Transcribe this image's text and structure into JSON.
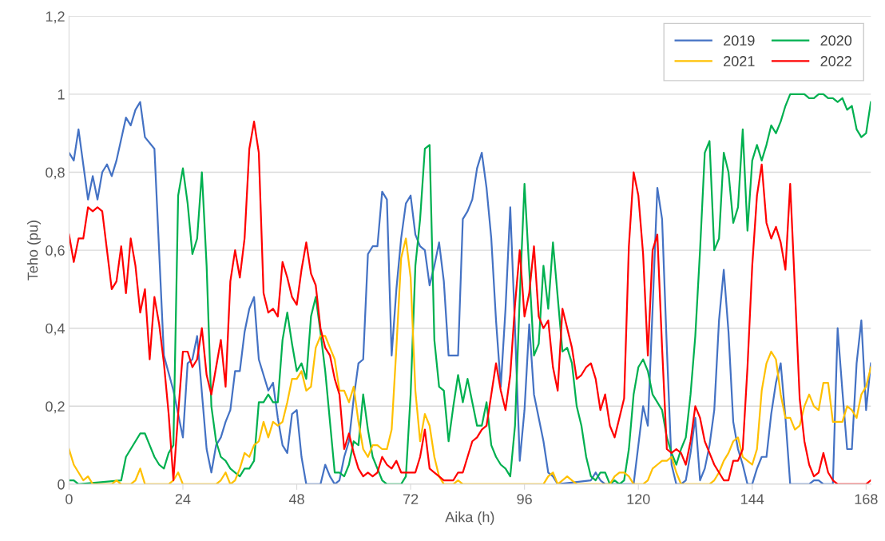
{
  "chart_data": {
    "type": "line",
    "xlabel": "Aika (h)",
    "ylabel": "Teho (pu)",
    "xlim": [
      0,
      169
    ],
    "xticks": [
      0,
      24,
      48,
      72,
      96,
      120,
      144,
      168
    ],
    "ylim": [
      0,
      1.2
    ],
    "yticks": [
      0,
      {
        "value": 0.2,
        "label": "0,2"
      },
      {
        "value": 0.4,
        "label": "0,4"
      },
      {
        "value": 0.6,
        "label": "0,6"
      },
      {
        "value": 0.8,
        "label": "0,8"
      },
      1,
      {
        "value": 1.2,
        "label": "1,2"
      }
    ],
    "grid": "y",
    "legend": "top right",
    "marker": "none",
    "line_style": "solid",
    "series": [
      {
        "name": "2019",
        "color": "#4472c4",
        "x": [
          0,
          1,
          2,
          4,
          5,
          6,
          7,
          8,
          9,
          10,
          12,
          13,
          14,
          15,
          16,
          18,
          20,
          22,
          24,
          25,
          26,
          27,
          29,
          30,
          31,
          32,
          33,
          34,
          35,
          36,
          37,
          38,
          39,
          40,
          41,
          42,
          43,
          44,
          45,
          46,
          47,
          48,
          49,
          50,
          51,
          53,
          54,
          55,
          56,
          57,
          58,
          59,
          60,
          61,
          62,
          63,
          64,
          65,
          66,
          67,
          68,
          69,
          70,
          71,
          72,
          73,
          74,
          75,
          76,
          77,
          78,
          79,
          80,
          81,
          82,
          83,
          84,
          85,
          86,
          87,
          88,
          89,
          90,
          91,
          92,
          93,
          94,
          95,
          96,
          97,
          98,
          99,
          100,
          101,
          102,
          103,
          110,
          111,
          112,
          113,
          119,
          120,
          121,
          122,
          123,
          124,
          125,
          126,
          127,
          128,
          129,
          130,
          131,
          132,
          133,
          134,
          135,
          136,
          137,
          138,
          139,
          140,
          141,
          142,
          143,
          144,
          145,
          146,
          147,
          148,
          149,
          150,
          151,
          152,
          156,
          157,
          158,
          159,
          161,
          162,
          163,
          164,
          165,
          166,
          167,
          168,
          169
        ],
        "values": [
          0.85,
          0.83,
          0.91,
          0.73,
          0.79,
          0.73,
          0.8,
          0.82,
          0.79,
          0.83,
          0.94,
          0.92,
          0.96,
          0.98,
          0.89,
          0.86,
          0.33,
          0.24,
          0.12,
          0.31,
          0.32,
          0.38,
          0.09,
          0.03,
          0.1,
          0.12,
          0.16,
          0.19,
          0.29,
          0.29,
          0.39,
          0.45,
          0.48,
          0.32,
          0.28,
          0.24,
          0.26,
          0.17,
          0.1,
          0.08,
          0.18,
          0.19,
          0.07,
          0.0,
          0,
          0,
          0.05,
          0.02,
          0,
          0.01,
          0.07,
          0.11,
          0.22,
          0.31,
          0.32,
          0.59,
          0.61,
          0.61,
          0.75,
          0.73,
          0.33,
          0.5,
          0.63,
          0.72,
          0.74,
          0.64,
          0.61,
          0.6,
          0.51,
          0.56,
          0.62,
          0.52,
          0.33,
          0.33,
          0.33,
          0.68,
          0.7,
          0.73,
          0.81,
          0.85,
          0.76,
          0.63,
          0.42,
          0.25,
          0.45,
          0.71,
          0.4,
          0.06,
          0.19,
          0.41,
          0.23,
          0.17,
          0.11,
          0.03,
          0.02,
          0,
          0.01,
          0.03,
          0.01,
          0,
          0,
          0.1,
          0.2,
          0.15,
          0.45,
          0.76,
          0.68,
          0.35,
          0.05,
          0,
          0,
          0.01,
          0.08,
          0.17,
          0.01,
          0.04,
          0.1,
          0.19,
          0.42,
          0.55,
          0.39,
          0.16,
          0.09,
          0.05,
          0,
          0,
          0.04,
          0.07,
          0.07,
          0.18,
          0.26,
          0.31,
          0.17,
          0,
          0,
          0.01,
          0.01,
          0,
          0,
          0.4,
          0.24,
          0.09,
          0.09,
          0.31,
          0.42,
          0.19,
          0.31
        ]
      },
      {
        "name": "2020",
        "color": "#00b050",
        "x": [
          0,
          1,
          2,
          11,
          12,
          13,
          14,
          15,
          16,
          17,
          18,
          19,
          20,
          21,
          22,
          23,
          24,
          25,
          26,
          27,
          28,
          29,
          30,
          31,
          32,
          33,
          34,
          35,
          36,
          37,
          38,
          39,
          40,
          41,
          42,
          43,
          44,
          45,
          46,
          47,
          48,
          49,
          50,
          51,
          52,
          53,
          54,
          55,
          56,
          57,
          58,
          59,
          60,
          61,
          62,
          63,
          64,
          65,
          66,
          67,
          70,
          71,
          72,
          73,
          74,
          75,
          76,
          77,
          78,
          79,
          80,
          81,
          82,
          83,
          84,
          85,
          86,
          87,
          88,
          89,
          90,
          91,
          92,
          93,
          94,
          95,
          96,
          97,
          98,
          99,
          100,
          101,
          102,
          103,
          104,
          105,
          106,
          107,
          108,
          109,
          110,
          111,
          112,
          113,
          114,
          115,
          116,
          117,
          118,
          119,
          120,
          121,
          122,
          123,
          124,
          125,
          126,
          127,
          128,
          129,
          130,
          131,
          132,
          133,
          134,
          135,
          136,
          137,
          138,
          139,
          140,
          141,
          142,
          143,
          144,
          145,
          146,
          147,
          148,
          149,
          150,
          151,
          152,
          153,
          154,
          155,
          156,
          157,
          158,
          159,
          160,
          161,
          162,
          163,
          164,
          165,
          166,
          167,
          168,
          169
        ],
        "values": [
          0.01,
          0.01,
          0,
          0.01,
          0.07,
          0.09,
          0.11,
          0.13,
          0.13,
          0.1,
          0.07,
          0.05,
          0.04,
          0.08,
          0.1,
          0.74,
          0.81,
          0.72,
          0.59,
          0.63,
          0.8,
          0.56,
          0.2,
          0.11,
          0.07,
          0.06,
          0.04,
          0.03,
          0.02,
          0.04,
          0.04,
          0.06,
          0.21,
          0.21,
          0.23,
          0.21,
          0.21,
          0.37,
          0.44,
          0.36,
          0.29,
          0.31,
          0.27,
          0.43,
          0.48,
          0.39,
          0.29,
          0.16,
          0.03,
          0.03,
          0.02,
          0.05,
          0.11,
          0.1,
          0.23,
          0.14,
          0.07,
          0.04,
          0.01,
          0,
          0,
          0.02,
          0.23,
          0.56,
          0.68,
          0.86,
          0.87,
          0.37,
          0.25,
          0.24,
          0.11,
          0.2,
          0.28,
          0.21,
          0.27,
          0.21,
          0.15,
          0.15,
          0.21,
          0.1,
          0.07,
          0.05,
          0.04,
          0.02,
          0.15,
          0.48,
          0.77,
          0.55,
          0.33,
          0.36,
          0.56,
          0.45,
          0.62,
          0.48,
          0.34,
          0.35,
          0.31,
          0.2,
          0.15,
          0.07,
          0.02,
          0.01,
          0.03,
          0.03,
          0,
          0.01,
          0,
          0.01,
          0.09,
          0.23,
          0.3,
          0.32,
          0.29,
          0.23,
          0.21,
          0.19,
          0.12,
          0.08,
          0.05,
          0.09,
          0.12,
          0.23,
          0.38,
          0.6,
          0.85,
          0.88,
          0.6,
          0.63,
          0.85,
          0.8,
          0.67,
          0.71,
          0.91,
          0.65,
          0.83,
          0.87,
          0.83,
          0.87,
          0.92,
          0.9,
          0.93,
          0.97,
          1.0,
          1.0,
          1.0,
          1.0,
          0.99,
          0.99,
          1.0,
          1.0,
          0.99,
          0.99,
          0.98,
          0.99,
          0.96,
          0.97,
          0.91,
          0.89,
          0.9,
          0.98
        ]
      },
      {
        "name": "2021",
        "color": "#ffc000",
        "x": [
          0,
          1,
          2,
          3,
          4,
          5,
          9,
          10,
          11,
          13,
          14,
          15,
          16,
          21,
          22,
          23,
          24,
          31,
          32,
          33,
          34,
          35,
          36,
          37,
          38,
          39,
          40,
          41,
          42,
          43,
          44,
          45,
          46,
          47,
          48,
          49,
          50,
          51,
          52,
          53,
          54,
          55,
          56,
          57,
          58,
          59,
          60,
          61,
          62,
          63,
          64,
          65,
          66,
          67,
          68,
          69,
          70,
          71,
          72,
          73,
          74,
          75,
          76,
          77,
          78,
          79,
          81,
          82,
          83,
          100,
          101,
          102,
          103,
          104,
          105,
          106,
          107,
          114,
          115,
          116,
          117,
          118,
          119,
          121,
          122,
          123,
          124,
          125,
          126,
          127,
          128,
          129,
          135,
          136,
          137,
          138,
          139,
          140,
          141,
          142,
          143,
          144,
          145,
          146,
          147,
          148,
          149,
          150,
          151,
          152,
          153,
          154,
          155,
          156,
          157,
          158,
          159,
          160,
          161,
          162,
          163,
          164,
          165,
          166,
          167,
          168,
          169
        ],
        "values": [
          0.09,
          0.05,
          0.03,
          0.01,
          0.02,
          0,
          0,
          0.01,
          0,
          0,
          0.01,
          0.04,
          0,
          0,
          0.01,
          0.03,
          0,
          0,
          0.01,
          0.03,
          0,
          0.01,
          0.04,
          0.08,
          0.07,
          0.1,
          0.11,
          0.16,
          0.12,
          0.16,
          0.15,
          0.16,
          0.21,
          0.27,
          0.27,
          0.29,
          0.24,
          0.25,
          0.35,
          0.38,
          0.38,
          0.35,
          0.32,
          0.24,
          0.24,
          0.21,
          0.25,
          0.16,
          0.09,
          0.07,
          0.1,
          0.1,
          0.09,
          0.09,
          0.14,
          0.35,
          0.58,
          0.63,
          0.53,
          0.24,
          0.11,
          0.18,
          0.15,
          0.07,
          0.02,
          0,
          0,
          0.01,
          0,
          0,
          0.02,
          0.03,
          0,
          0.01,
          0.02,
          0.01,
          0,
          0,
          0.02,
          0.03,
          0.03,
          0.02,
          0,
          0,
          0.01,
          0.04,
          0.05,
          0.06,
          0.06,
          0.07,
          0.03,
          0,
          0,
          0.01,
          0.03,
          0.06,
          0.08,
          0.11,
          0.12,
          0.07,
          0.06,
          0.05,
          0.09,
          0.24,
          0.31,
          0.34,
          0.32,
          0.23,
          0.17,
          0.17,
          0.14,
          0.15,
          0.2,
          0.23,
          0.2,
          0.19,
          0.26,
          0.26,
          0.16,
          0.16,
          0.16,
          0.2,
          0.19,
          0.17,
          0.23,
          0.25,
          0.3
        ]
      },
      {
        "name": "2022",
        "color": "#ff0000",
        "x": [
          0,
          1,
          2,
          3,
          4,
          5,
          6,
          7,
          8,
          9,
          10,
          11,
          12,
          13,
          14,
          15,
          16,
          17,
          18,
          19,
          20,
          21,
          22,
          23,
          24,
          25,
          26,
          27,
          28,
          29,
          30,
          31,
          32,
          33,
          34,
          35,
          36,
          37,
          38,
          39,
          40,
          41,
          42,
          43,
          44,
          45,
          46,
          47,
          48,
          49,
          50,
          51,
          52,
          53,
          54,
          55,
          56,
          57,
          58,
          59,
          60,
          61,
          62,
          63,
          64,
          65,
          66,
          67,
          68,
          69,
          70,
          71,
          72,
          73,
          74,
          75,
          76,
          77,
          78,
          79,
          80,
          81,
          82,
          83,
          84,
          85,
          86,
          87,
          88,
          89,
          90,
          91,
          92,
          93,
          94,
          95,
          96,
          97,
          98,
          99,
          100,
          101,
          102,
          103,
          104,
          105,
          106,
          107,
          108,
          109,
          110,
          111,
          112,
          113,
          114,
          115,
          116,
          117,
          118,
          119,
          120,
          121,
          122,
          123,
          124,
          125,
          126,
          127,
          128,
          129,
          130,
          131,
          132,
          133,
          134,
          135,
          136,
          137,
          138,
          139,
          140,
          141,
          142,
          143,
          144,
          145,
          146,
          147,
          148,
          149,
          150,
          151,
          152,
          153,
          154,
          155,
          156,
          157,
          158,
          159,
          160,
          161,
          162,
          163,
          168,
          169
        ],
        "values": [
          0.64,
          0.57,
          0.63,
          0.63,
          0.71,
          0.7,
          0.71,
          0.7,
          0.6,
          0.5,
          0.52,
          0.61,
          0.49,
          0.63,
          0.56,
          0.44,
          0.5,
          0.32,
          0.48,
          0.41,
          0.31,
          0.18,
          0.01,
          0.18,
          0.34,
          0.34,
          0.3,
          0.32,
          0.4,
          0.28,
          0.23,
          0.3,
          0.37,
          0.25,
          0.52,
          0.6,
          0.53,
          0.63,
          0.86,
          0.93,
          0.85,
          0.49,
          0.44,
          0.45,
          0.43,
          0.57,
          0.53,
          0.48,
          0.46,
          0.55,
          0.62,
          0.54,
          0.51,
          0.4,
          0.35,
          0.33,
          0.27,
          0.23,
          0.09,
          0.13,
          0.08,
          0.04,
          0.02,
          0.03,
          0.02,
          0.03,
          0.07,
          0.05,
          0.04,
          0.06,
          0.03,
          0.03,
          0.03,
          0.03,
          0.07,
          0.14,
          0.04,
          0.03,
          0.02,
          0.01,
          0.01,
          0.01,
          0.03,
          0.03,
          0.07,
          0.11,
          0.12,
          0.14,
          0.15,
          0.23,
          0.31,
          0.24,
          0.19,
          0.28,
          0.46,
          0.6,
          0.43,
          0.49,
          0.61,
          0.43,
          0.4,
          0.42,
          0.3,
          0.24,
          0.45,
          0.4,
          0.35,
          0.27,
          0.28,
          0.3,
          0.31,
          0.27,
          0.19,
          0.23,
          0.15,
          0.12,
          0.17,
          0.22,
          0.61,
          0.8,
          0.74,
          0.59,
          0.33,
          0.6,
          0.64,
          0.35,
          0.09,
          0.08,
          0.09,
          0.08,
          0.05,
          0.11,
          0.2,
          0.17,
          0.11,
          0.08,
          0.05,
          0.03,
          0.01,
          0.01,
          0.06,
          0.06,
          0.09,
          0.3,
          0.56,
          0.74,
          0.82,
          0.67,
          0.63,
          0.66,
          0.62,
          0.55,
          0.77,
          0.5,
          0.22,
          0.11,
          0.05,
          0.02,
          0.03,
          0.08,
          0.03,
          0.01,
          0,
          0,
          0,
          0.01
        ]
      }
    ]
  }
}
